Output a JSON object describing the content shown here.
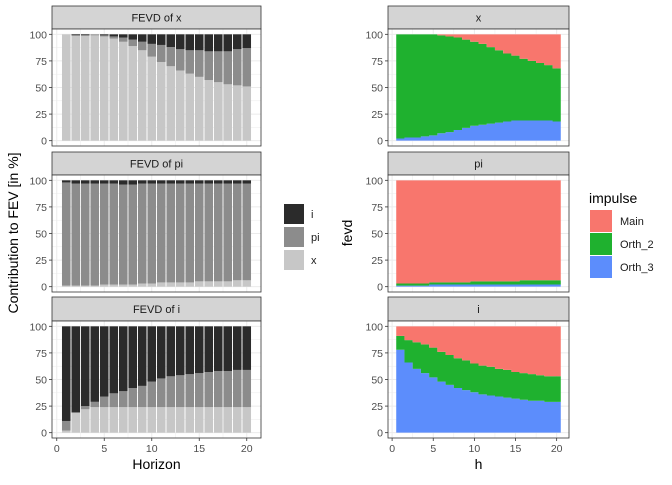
{
  "chart_data": [
    {
      "type": "bar",
      "stacked": true,
      "title": "FEVD of x",
      "xlabel": "",
      "ylabel": "Contribution to FEV [in %]",
      "x": [
        1,
        2,
        3,
        4,
        5,
        6,
        7,
        8,
        9,
        10,
        11,
        12,
        13,
        14,
        15,
        16,
        17,
        18,
        19,
        20
      ],
      "ylim": [
        0,
        100
      ],
      "xticks": [
        0,
        5,
        10,
        15,
        20
      ],
      "yticks": [
        0,
        25,
        50,
        75,
        100
      ],
      "series": [
        {
          "name": "x",
          "values": [
            100,
            99,
            99,
            99,
            98,
            96,
            93,
            89,
            85,
            79,
            74,
            70,
            66,
            63,
            60,
            57,
            55,
            53,
            52,
            51
          ]
        },
        {
          "name": "pi",
          "values": [
            0,
            0,
            0,
            1,
            1,
            2,
            4,
            6,
            8,
            12,
            16,
            18,
            20,
            22,
            25,
            27,
            29,
            31,
            34,
            36
          ]
        },
        {
          "name": "i",
          "values": [
            0,
            1,
            1,
            0,
            1,
            2,
            3,
            5,
            7,
            9,
            10,
            12,
            14,
            15,
            15,
            16,
            16,
            16,
            14,
            13
          ]
        }
      ]
    },
    {
      "type": "bar",
      "stacked": true,
      "title": "FEVD of pi",
      "xlabel": "",
      "ylabel": "",
      "x": [
        1,
        2,
        3,
        4,
        5,
        6,
        7,
        8,
        9,
        10,
        11,
        12,
        13,
        14,
        15,
        16,
        17,
        18,
        19,
        20
      ],
      "ylim": [
        0,
        100
      ],
      "xticks": [
        0,
        5,
        10,
        15,
        20
      ],
      "yticks": [
        0,
        25,
        50,
        75,
        100
      ],
      "series": [
        {
          "name": "x",
          "values": [
            1,
            1,
            1,
            1,
            2,
            2,
            2,
            2,
            3,
            3,
            4,
            4,
            4,
            4,
            5,
            5,
            5,
            5,
            6,
            6
          ]
        },
        {
          "name": "pi",
          "values": [
            97,
            96,
            96,
            96,
            95,
            95,
            94,
            94,
            94,
            94,
            93,
            93,
            93,
            93,
            92,
            92,
            92,
            92,
            91,
            91
          ]
        },
        {
          "name": "i",
          "values": [
            2,
            3,
            3,
            3,
            3,
            3,
            4,
            4,
            3,
            3,
            3,
            3,
            3,
            3,
            3,
            3,
            3,
            3,
            3,
            3
          ]
        }
      ]
    },
    {
      "type": "bar",
      "stacked": true,
      "title": "FEVD of i",
      "xlabel": "Horizon",
      "ylabel": "",
      "x": [
        1,
        2,
        3,
        4,
        5,
        6,
        7,
        8,
        9,
        10,
        11,
        12,
        13,
        14,
        15,
        16,
        17,
        18,
        19,
        20
      ],
      "ylim": [
        0,
        100
      ],
      "xticks": [
        0,
        5,
        10,
        15,
        20
      ],
      "yticks": [
        0,
        25,
        50,
        75,
        100
      ],
      "series": [
        {
          "name": "x",
          "values": [
            2,
            19,
            22,
            24,
            24,
            24,
            24,
            24,
            24,
            24,
            24,
            24,
            24,
            24,
            24,
            24,
            24,
            24,
            24,
            24
          ]
        },
        {
          "name": "pi",
          "values": [
            9,
            0,
            3,
            5,
            10,
            13,
            15,
            18,
            20,
            24,
            27,
            29,
            30,
            31,
            32,
            33,
            34,
            34,
            35,
            35
          ]
        },
        {
          "name": "i",
          "values": [
            89,
            81,
            75,
            71,
            66,
            63,
            61,
            58,
            56,
            52,
            49,
            47,
            46,
            45,
            44,
            43,
            42,
            42,
            41,
            41
          ]
        }
      ]
    },
    {
      "type": "area",
      "stacked": true,
      "title": "x",
      "xlabel": "",
      "ylabel": "",
      "x": [
        1,
        2,
        3,
        4,
        5,
        6,
        7,
        8,
        9,
        10,
        11,
        12,
        13,
        14,
        15,
        16,
        17,
        18,
        19,
        20
      ],
      "ylim": [
        0,
        100
      ],
      "xticks": [
        0,
        5,
        10,
        15,
        20
      ],
      "yticks": [
        0,
        25,
        50,
        75,
        100
      ],
      "series": [
        {
          "name": "Orth_3",
          "values": [
            2,
            3,
            3,
            4,
            5,
            7,
            8,
            10,
            12,
            14,
            15,
            16,
            17,
            18,
            19,
            19,
            19,
            19,
            19,
            18
          ]
        },
        {
          "name": "Orth_2",
          "values": [
            98,
            97,
            97,
            96,
            95,
            92,
            90,
            87,
            83,
            79,
            76,
            72,
            68,
            64,
            61,
            58,
            56,
            54,
            52,
            50
          ]
        },
        {
          "name": "Main",
          "values": [
            0,
            0,
            0,
            0,
            0,
            1,
            2,
            3,
            5,
            7,
            9,
            12,
            15,
            18,
            20,
            23,
            25,
            27,
            29,
            32
          ]
        }
      ]
    },
    {
      "type": "area",
      "stacked": true,
      "title": "pi",
      "xlabel": "",
      "ylabel": "fevd",
      "x": [
        1,
        2,
        3,
        4,
        5,
        6,
        7,
        8,
        9,
        10,
        11,
        12,
        13,
        14,
        15,
        16,
        17,
        18,
        19,
        20
      ],
      "ylim": [
        0,
        100
      ],
      "xticks": [
        0,
        5,
        10,
        15,
        20
      ],
      "yticks": [
        0,
        25,
        50,
        75,
        100
      ],
      "series": [
        {
          "name": "Orth_3",
          "values": [
            1,
            1,
            1,
            1,
            2,
            2,
            2,
            2,
            2,
            2,
            2,
            2,
            2,
            2,
            2,
            2,
            2,
            2,
            2,
            2
          ]
        },
        {
          "name": "Orth_2",
          "values": [
            2,
            2,
            2,
            2,
            2,
            2,
            2,
            2,
            2,
            3,
            3,
            3,
            3,
            3,
            3,
            4,
            4,
            4,
            4,
            4
          ]
        },
        {
          "name": "Main",
          "values": [
            97,
            97,
            97,
            97,
            96,
            96,
            96,
            96,
            96,
            95,
            95,
            95,
            95,
            95,
            95,
            94,
            94,
            94,
            94,
            94
          ]
        }
      ]
    },
    {
      "type": "area",
      "stacked": true,
      "title": "i",
      "xlabel": "h",
      "ylabel": "",
      "x": [
        1,
        2,
        3,
        4,
        5,
        6,
        7,
        8,
        9,
        10,
        11,
        12,
        13,
        14,
        15,
        16,
        17,
        18,
        19,
        20
      ],
      "ylim": [
        0,
        100
      ],
      "xticks": [
        0,
        5,
        10,
        15,
        20
      ],
      "yticks": [
        0,
        25,
        50,
        75,
        100
      ],
      "series": [
        {
          "name": "Orth_3",
          "values": [
            78,
            66,
            60,
            56,
            52,
            48,
            45,
            42,
            40,
            38,
            36,
            35,
            34,
            33,
            32,
            31,
            30,
            30,
            29,
            29
          ]
        },
        {
          "name": "Orth_2",
          "values": [
            13,
            21,
            25,
            27,
            28,
            28,
            28,
            28,
            28,
            27,
            27,
            27,
            26,
            26,
            25,
            25,
            25,
            24,
            24,
            24
          ]
        },
        {
          "name": "Main",
          "values": [
            9,
            13,
            15,
            17,
            20,
            24,
            27,
            30,
            32,
            35,
            37,
            38,
            40,
            41,
            43,
            44,
            45,
            46,
            47,
            47
          ]
        }
      ]
    }
  ],
  "legends": {
    "left": {
      "title": "",
      "items": [
        {
          "label": "i",
          "color": "#2b2b2b"
        },
        {
          "label": "pi",
          "color": "#8c8c8c"
        },
        {
          "label": "x",
          "color": "#c7c7c7"
        }
      ]
    },
    "right": {
      "title": "impulse",
      "items": [
        {
          "label": "Main",
          "color": "#f8766d"
        },
        {
          "label": "Orth_2",
          "color": "#1fb12f"
        },
        {
          "label": "Orth_3",
          "color": "#5c8dfc"
        }
      ]
    }
  },
  "colors": {
    "x": "#c7c7c7",
    "pi": "#8c8c8c",
    "i": "#2b2b2b",
    "Main": "#f8766d",
    "Orth_2": "#1fb12f",
    "Orth_3": "#5c8dfc",
    "strip": "#d4d4d4",
    "grid": "#ebebeb",
    "axis_text": "#4d4d4d"
  }
}
